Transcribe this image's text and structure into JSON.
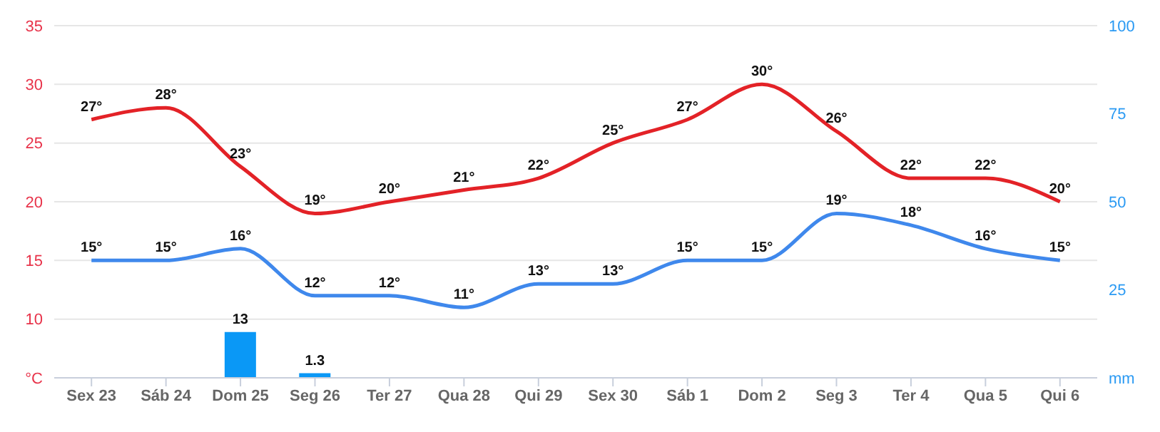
{
  "chart_data": {
    "type": "line",
    "categories": [
      "Sex 23",
      "Sáb 24",
      "Dom 25",
      "Seg 26",
      "Ter 27",
      "Qua 28",
      "Qui 29",
      "Sex 30",
      "Sáb 1",
      "Dom 2",
      "Seg 3",
      "Ter 4",
      "Qua 5",
      "Qui 6"
    ],
    "series": [
      {
        "color": "#e32227",
        "values": [
          27,
          28,
          23,
          19,
          20,
          21,
          22,
          25,
          27,
          30,
          26,
          22,
          22,
          20
        ],
        "value_labels": [
          "27°",
          "28°",
          "23°",
          "19°",
          "20°",
          "21°",
          "22°",
          "25°",
          "27°",
          "30°",
          "26°",
          "22°",
          "22°",
          "20°"
        ]
      },
      {
        "color": "#3f88ec",
        "values": [
          15,
          15,
          16,
          12,
          12,
          11,
          13,
          13,
          15,
          15,
          19,
          18,
          16,
          15
        ],
        "value_labels": [
          "15°",
          "15°",
          "16°",
          "12°",
          "12°",
          "11°",
          "13°",
          "13°",
          "15°",
          "15°",
          "19°",
          "18°",
          "16°",
          "15°"
        ]
      },
      {
        "type": "bar",
        "axis": "y2",
        "color": "#0a98f6",
        "values": [
          null,
          null,
          13,
          1.3,
          null,
          null,
          null,
          null,
          null,
          null,
          null,
          null,
          null,
          null
        ],
        "value_labels": [
          null,
          null,
          "13",
          "1.3",
          null,
          null,
          null,
          null,
          null,
          null,
          null,
          null,
          null,
          null
        ]
      }
    ],
    "ylim": [
      5,
      35
    ],
    "yticks": [
      {
        "value": 5,
        "label": "°C"
      },
      10,
      15,
      20,
      25,
      30,
      35
    ],
    "y2lim": [
      0,
      100
    ],
    "y2ticks": [
      {
        "value": 0,
        "label": "mm"
      },
      25,
      50,
      75,
      100
    ],
    "grid": "y",
    "marker": "none",
    "line_style": "solid"
  }
}
